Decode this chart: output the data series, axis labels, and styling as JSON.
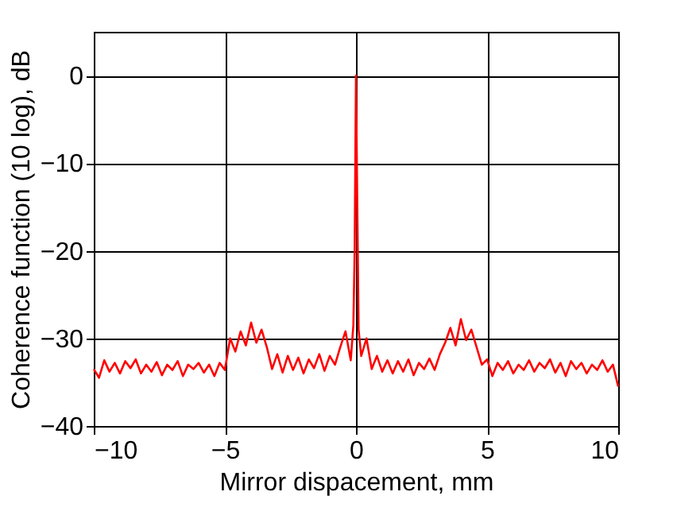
{
  "chart_data": {
    "type": "line",
    "xlabel": "Mirror dispacement, mm",
    "ylabel": "Coherence function (10 log), dB",
    "xlim": [
      -10,
      10
    ],
    "xticks": [
      -10,
      -5,
      0,
      5,
      10
    ],
    "ylim": [
      -40,
      5
    ],
    "yticks": [
      -40,
      -30,
      -20,
      -10,
      0
    ],
    "grid": true,
    "marker": "none",
    "line_style": "solid",
    "series": [
      {
        "color": "#ff0000",
        "x": [
          -10,
          -9.8,
          -9.6,
          -9.4,
          -9.2,
          -9.0,
          -8.8,
          -8.6,
          -8.4,
          -8.2,
          -8.0,
          -7.8,
          -7.6,
          -7.4,
          -7.2,
          -7.0,
          -6.8,
          -6.6,
          -6.4,
          -6.2,
          -6.0,
          -5.8,
          -5.6,
          -5.4,
          -5.2,
          -5.0,
          -4.8,
          -4.6,
          -4.4,
          -4.2,
          -4.0,
          -3.8,
          -3.6,
          -3.4,
          -3.2,
          -3.0,
          -2.8,
          -2.6,
          -2.4,
          -2.2,
          -2.0,
          -1.8,
          -1.6,
          -1.4,
          -1.2,
          -1.0,
          -0.8,
          -0.6,
          -0.4,
          -0.2,
          -0.1,
          -0.05,
          0,
          0.05,
          0.1,
          0.2,
          0.4,
          0.6,
          0.8,
          1.0,
          1.2,
          1.4,
          1.6,
          1.8,
          2.0,
          2.2,
          2.4,
          2.6,
          2.8,
          3.0,
          3.2,
          3.4,
          3.6,
          3.8,
          4.0,
          4.2,
          4.4,
          4.6,
          4.8,
          5.0,
          5.2,
          5.4,
          5.6,
          5.8,
          6.0,
          6.2,
          6.4,
          6.6,
          6.8,
          7.0,
          7.2,
          7.4,
          7.6,
          7.8,
          8.0,
          8.2,
          8.4,
          8.6,
          8.8,
          9.0,
          9.2,
          9.4,
          9.6,
          9.8,
          10.0
        ],
        "values": [
          -33.5,
          -34.5,
          -32.5,
          -33.8,
          -32.8,
          -34.0,
          -32.6,
          -33.4,
          -32.4,
          -34.0,
          -33.0,
          -33.8,
          -32.7,
          -34.2,
          -33.0,
          -33.6,
          -32.6,
          -34.3,
          -33.0,
          -33.5,
          -32.8,
          -33.9,
          -33.0,
          -34.3,
          -32.8,
          -33.6,
          -30.0,
          -31.5,
          -29.2,
          -30.8,
          -28.2,
          -30.5,
          -29.0,
          -31.0,
          -33.5,
          -31.8,
          -33.9,
          -32.0,
          -33.6,
          -32.2,
          -34.0,
          -32.4,
          -33.4,
          -31.8,
          -33.7,
          -32.0,
          -33.0,
          -31.0,
          -29.2,
          -32.5,
          -28.5,
          -20,
          0,
          -15,
          -29,
          -32.0,
          -30.0,
          -33.5,
          -32.0,
          -33.8,
          -32.5,
          -34.0,
          -32.6,
          -33.8,
          -32.4,
          -34.2,
          -32.8,
          -33.5,
          -32.3,
          -33.6,
          -31.8,
          -30.5,
          -28.8,
          -30.8,
          -27.8,
          -30.2,
          -29.0,
          -31.0,
          -33.0,
          -32.4,
          -34.3,
          -32.8,
          -33.6,
          -32.6,
          -34.0,
          -33.0,
          -33.6,
          -32.5,
          -33.8,
          -32.8,
          -33.4,
          -32.4,
          -33.9,
          -32.8,
          -34.3,
          -32.6,
          -33.5,
          -32.8,
          -34.0,
          -33.0,
          -33.6,
          -32.5,
          -33.8,
          -33.0,
          -35.5
        ]
      }
    ]
  }
}
